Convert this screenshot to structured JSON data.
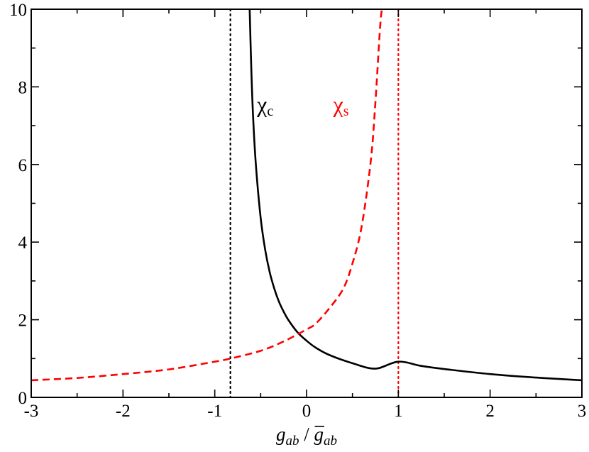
{
  "chart_data": {
    "type": "line",
    "title": "",
    "xlabel": {
      "main": "g",
      "sub": "ab",
      "sep": " / ",
      "main2": "g",
      "sub2": "ab",
      "bar_over_main2": true
    },
    "ylabel": "",
    "xlim": [
      -3,
      3
    ],
    "ylim": [
      0,
      10
    ],
    "xticks": [
      -3,
      -2,
      -1,
      0,
      1,
      2,
      3
    ],
    "yticks": [
      0,
      2,
      4,
      6,
      8,
      10
    ],
    "xtick_labels": [
      "-3",
      "-2",
      "-1",
      "0",
      "1",
      "2",
      "3"
    ],
    "ytick_labels": [
      "0",
      "2",
      "4",
      "6",
      "8",
      "10"
    ],
    "grid": false,
    "series": [
      {
        "name": "χc",
        "label_main": "χ",
        "label_sub": "c",
        "color": "#000000",
        "style": "solid",
        "x": [
          -0.62,
          -0.6,
          -0.58,
          -0.55,
          -0.5,
          -0.45,
          -0.4,
          -0.35,
          -0.3,
          -0.25,
          -0.2,
          -0.1,
          0.0,
          0.1,
          0.25,
          0.5,
          0.75,
          1.0,
          1.25,
          1.5,
          2.0,
          2.5,
          3.0
        ],
        "y": [
          10.0,
          8.3,
          7.1,
          5.92,
          4.62,
          3.79,
          3.21,
          2.79,
          2.46,
          2.21,
          2.0,
          1.68,
          1.46,
          1.28,
          1.09,
          0.88,
          0.74,
          0.92,
          0.81,
          0.73,
          0.6,
          0.51,
          0.44
        ]
      },
      {
        "name": "χs",
        "label_main": "χ",
        "label_sub": "s",
        "color": "#ff0000",
        "style": "dashed",
        "x": [
          -3.0,
          -2.5,
          -2.0,
          -1.5,
          -1.0,
          -0.83,
          -0.5,
          -0.25,
          0.0,
          0.1,
          0.25,
          0.4,
          0.5,
          0.6,
          0.7,
          0.75,
          0.8,
          0.82
        ],
        "y": [
          0.44,
          0.5,
          0.6,
          0.72,
          0.92,
          1.0,
          1.2,
          1.44,
          1.75,
          1.9,
          2.3,
          2.8,
          3.45,
          4.4,
          6.1,
          7.6,
          9.5,
          10.0
        ]
      }
    ],
    "reference_lines": [
      {
        "x": -0.83,
        "color": "#000000",
        "style": "dotted"
      },
      {
        "x": 1.0,
        "color": "#ff0000",
        "style": "dotted"
      }
    ]
  }
}
